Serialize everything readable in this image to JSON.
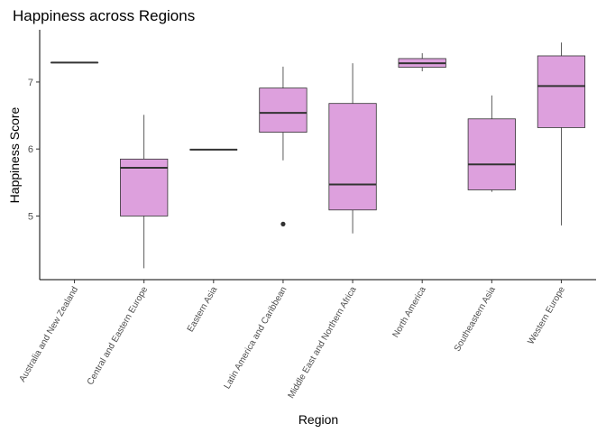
{
  "chart_data": {
    "type": "boxplot",
    "title": "Happiness across Regions",
    "xlabel": "Region",
    "ylabel": "Happiness Score",
    "ylim": [
      4.05,
      7.78
    ],
    "yticks": [
      5,
      6,
      7
    ],
    "grid": false,
    "fill_color": "#dda0dd",
    "stroke_color": "#333333",
    "categories": [
      "Australia and New Zealand",
      "Central and Eastern Europe",
      "Eastern Asia",
      "Latin America and Caribbean",
      "Middle East and Northern Africa",
      "North America",
      "Southeastern Asia",
      "Western Europe"
    ],
    "boxes": [
      {
        "min": 7.29,
        "q1": 7.29,
        "median": 7.29,
        "q3": 7.29,
        "max": 7.29,
        "outliers": []
      },
      {
        "min": 4.22,
        "q1": 5.0,
        "median": 5.72,
        "q3": 5.85,
        "max": 6.51,
        "outliers": []
      },
      {
        "min": 5.99,
        "q1": 5.99,
        "median": 5.99,
        "q3": 5.99,
        "max": 5.99,
        "outliers": []
      },
      {
        "min": 5.83,
        "q1": 6.25,
        "median": 6.54,
        "q3": 6.91,
        "max": 7.23,
        "outliers": [
          4.88
        ]
      },
      {
        "min": 4.74,
        "q1": 5.09,
        "median": 5.47,
        "q3": 6.68,
        "max": 7.28,
        "outliers": []
      },
      {
        "min": 7.16,
        "q1": 7.22,
        "median": 7.28,
        "q3": 7.35,
        "max": 7.43,
        "outliers": []
      },
      {
        "min": 5.36,
        "q1": 5.39,
        "median": 5.77,
        "q3": 6.45,
        "max": 6.8,
        "outliers": []
      },
      {
        "min": 4.86,
        "q1": 6.32,
        "median": 6.94,
        "q3": 7.39,
        "max": 7.59,
        "outliers": []
      }
    ]
  }
}
